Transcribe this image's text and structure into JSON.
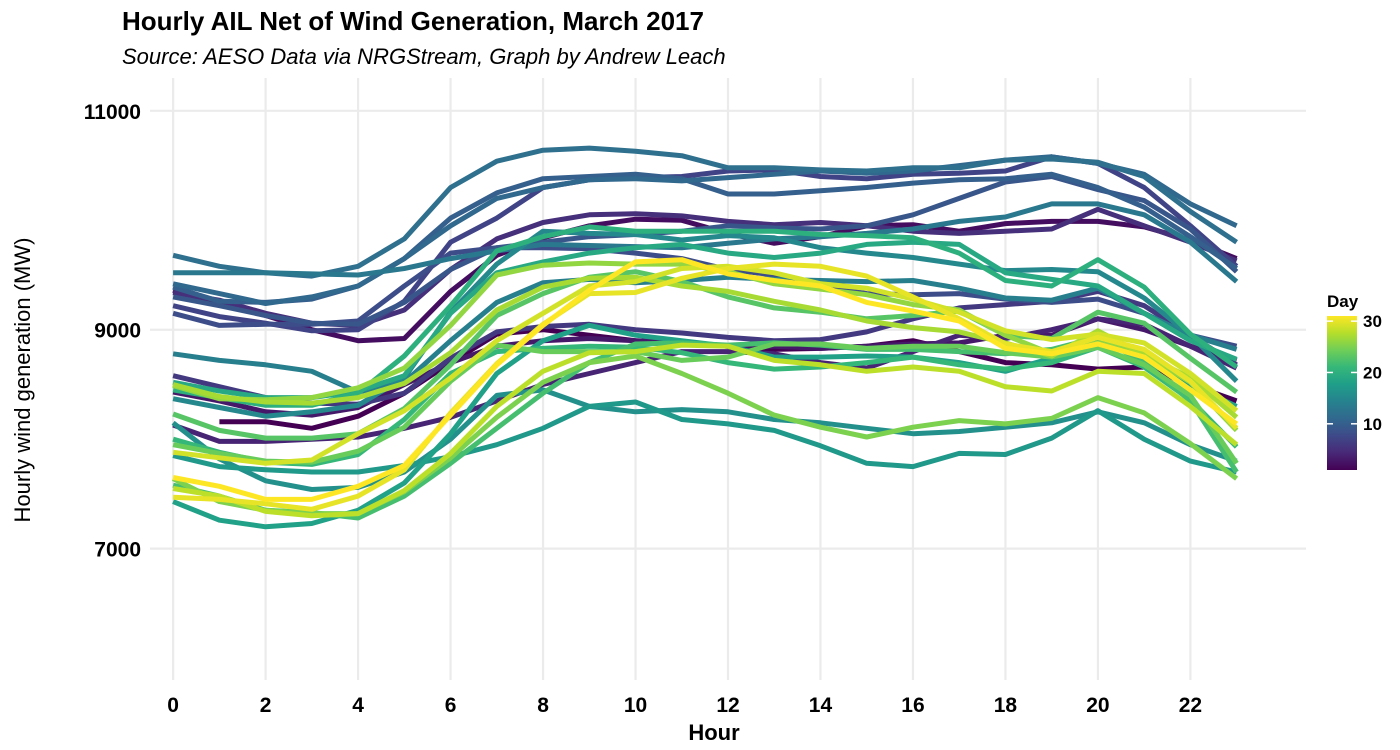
{
  "chart_data": {
    "type": "line",
    "title": "Hourly AIL Net of Wind Generation, March 2017",
    "subtitle": "Source: AESO Data via NRGStream, Graph by Andrew Leach",
    "xlabel": "Hour",
    "ylabel": "Hourly wind generation (MW)",
    "x": [
      0,
      1,
      2,
      3,
      4,
      5,
      6,
      7,
      8,
      9,
      10,
      11,
      12,
      13,
      14,
      15,
      16,
      17,
      18,
      19,
      20,
      21,
      22,
      23
    ],
    "xticks": [
      0,
      2,
      4,
      6,
      8,
      10,
      12,
      14,
      16,
      18,
      20,
      22
    ],
    "yticks": [
      7000,
      9000,
      11000
    ],
    "xlim": [
      -0.5,
      24.5
    ],
    "ylim": [
      5800,
      11300
    ],
    "grid": true,
    "legend": {
      "title": "Day",
      "position": "right",
      "ticks": [
        10,
        20,
        30
      ],
      "range": [
        1,
        31
      ],
      "colormap": "viridis",
      "colors": [
        "#440154",
        "#482878",
        "#3e4a89",
        "#31688e",
        "#26828e",
        "#1f9e89",
        "#35b779",
        "#6ece58",
        "#b5de2b",
        "#fde725"
      ]
    },
    "series": [
      {
        "day": 1,
        "values": [
          null,
          8160,
          8160,
          8100,
          8210,
          8420,
          8700,
          8960,
          9000,
          8950,
          8900,
          8880,
          8850,
          8820,
          8830,
          8850,
          8900,
          8800,
          8700,
          8680,
          8640,
          8660,
          8500,
          8350
        ]
      },
      {
        "day": 2,
        "values": [
          9360,
          9240,
          9130,
          9000,
          8900,
          8920,
          9350,
          9680,
          9840,
          9950,
          10010,
          10000,
          9880,
          9790,
          9850,
          9950,
          9960,
          9900,
          9970,
          9990,
          9990,
          9940,
          9820,
          9650
        ]
      },
      {
        "day": 3,
        "values": [
          8430,
          8350,
          8250,
          8220,
          8290,
          8500,
          8700,
          8850,
          8900,
          8920,
          8900,
          8880,
          8850,
          8850,
          8830,
          8850,
          8870,
          8880,
          8950,
          8950,
          9100,
          9000,
          8850,
          8720
        ]
      },
      {
        "day": 4,
        "values": [
          8130,
          7980,
          7980,
          8000,
          8020,
          8100,
          8200,
          8350,
          8500,
          8600,
          8700,
          8800,
          8800,
          8780,
          8700,
          8650,
          8800,
          8950,
          8920,
          9000,
          9100,
          9050,
          8850,
          8650
        ]
      },
      {
        "day": 5,
        "values": [
          9340,
          9270,
          9150,
          9060,
          9040,
          9180,
          9550,
          9830,
          9980,
          10050,
          10060,
          10040,
          9990,
          9960,
          9980,
          9950,
          9900,
          9880,
          9900,
          9920,
          10100,
          9950,
          9800,
          9630
        ]
      },
      {
        "day": 6,
        "values": [
          8580,
          8480,
          8380,
          8330,
          8320,
          8420,
          8740,
          8980,
          9030,
          9050,
          9000,
          8970,
          8930,
          8900,
          8910,
          8980,
          9100,
          9200,
          9230,
          9260,
          9350,
          9220,
          8950,
          8680
        ]
      },
      {
        "day": 7,
        "values": [
          9220,
          9120,
          9060,
          8990,
          9000,
          9260,
          9800,
          10020,
          10300,
          10370,
          10390,
          10400,
          10450,
          10460,
          10400,
          10380,
          10420,
          10430,
          10450,
          10580,
          10520,
          10300,
          9950,
          9580
        ]
      },
      {
        "day": 8,
        "values": [
          9150,
          9040,
          9050,
          9050,
          9080,
          9400,
          9700,
          9750,
          9750,
          9740,
          9700,
          9650,
          9550,
          9500,
          9400,
          9330,
          9320,
          9330,
          9280,
          9250,
          9280,
          9150,
          8950,
          8850
        ]
      },
      {
        "day": 9,
        "values": [
          9300,
          9220,
          9130,
          9060,
          9050,
          9250,
          9550,
          9750,
          9800,
          9850,
          9870,
          9900,
          9950,
          9930,
          9920,
          9950,
          10050,
          10200,
          10350,
          10400,
          10280,
          10180,
          9920,
          9530
        ]
      },
      {
        "day": 10,
        "values": [
          9390,
          9260,
          9250,
          9280,
          9400,
          9650,
          10020,
          10250,
          10380,
          10400,
          10420,
          10380,
          10240,
          10240,
          10270,
          10300,
          10340,
          10370,
          10380,
          10420,
          10300,
          10120,
          9850,
          9560
        ]
      },
      {
        "day": 11,
        "values": [
          9420,
          9330,
          9240,
          9300,
          9400,
          9650,
          9950,
          10200,
          10300,
          10370,
          10380,
          10360,
          10390,
          10420,
          10450,
          10430,
          10450,
          10500,
          10550,
          10580,
          10520,
          10420,
          10150,
          9950
        ]
      },
      {
        "day": 12,
        "values": [
          9680,
          9580,
          9520,
          9490,
          9580,
          9830,
          10300,
          10540,
          10640,
          10660,
          10630,
          10590,
          10480,
          10480,
          10460,
          10450,
          10480,
          10480,
          10550,
          10560,
          10530,
          10400,
          10080,
          9800
        ]
      },
      {
        "day": 13,
        "values": [
          9520,
          9520,
          9520,
          9510,
          9500,
          9560,
          9650,
          9720,
          9780,
          9770,
          9760,
          9750,
          9790,
          9830,
          9850,
          9880,
          9920,
          9990,
          10030,
          10150,
          10150,
          10050,
          9800,
          9440
        ]
      },
      {
        "day": 14,
        "values": [
          8780,
          8720,
          8680,
          8620,
          8430,
          8520,
          8900,
          9250,
          9430,
          9460,
          9430,
          9450,
          9480,
          9460,
          9450,
          9440,
          9450,
          9380,
          9290,
          9270,
          9380,
          9150,
          8950,
          8820
        ]
      },
      {
        "day": 15,
        "values": [
          8370,
          8290,
          8210,
          8250,
          8310,
          8560,
          9160,
          9600,
          9900,
          9880,
          9870,
          9820,
          9860,
          9840,
          9750,
          9700,
          9660,
          9600,
          9540,
          9550,
          9530,
          9290,
          8950,
          8530
        ]
      },
      {
        "day": 16,
        "values": [
          8150,
          7820,
          7620,
          7540,
          7560,
          7700,
          8000,
          8400,
          8450,
          8300,
          8250,
          8270,
          8250,
          8180,
          8150,
          8100,
          8050,
          8070,
          8110,
          8150,
          8250,
          8150,
          7950,
          7800
        ]
      },
      {
        "day": 17,
        "values": [
          7850,
          7750,
          7720,
          7700,
          7700,
          7760,
          7840,
          7950,
          8100,
          8300,
          8340,
          8180,
          8140,
          8080,
          7940,
          7780,
          7750,
          7870,
          7860,
          8010,
          8260,
          8000,
          7800,
          7700
        ]
      },
      {
        "day": 18,
        "values": [
          7430,
          7260,
          7200,
          7230,
          7350,
          7600,
          8050,
          8600,
          8900,
          9040,
          8950,
          8900,
          8850,
          8750,
          8750,
          8760,
          8750,
          8700,
          8620,
          8740,
          8920,
          8720,
          8500,
          8300
        ]
      },
      {
        "day": 19,
        "values": [
          8520,
          8440,
          8380,
          8380,
          8440,
          8580,
          9150,
          9520,
          9620,
          9700,
          9750,
          9780,
          9700,
          9660,
          9700,
          9780,
          9800,
          9780,
          9520,
          9460,
          9400,
          9150,
          8900,
          8730
        ]
      },
      {
        "day": 20,
        "values": [
          8450,
          8380,
          8310,
          8310,
          8420,
          8760,
          9220,
          9720,
          9850,
          9940,
          9900,
          9900,
          9900,
          9900,
          9870,
          9860,
          9840,
          9700,
          9450,
          9400,
          9640,
          9390,
          8960,
          8660
        ]
      },
      {
        "day": 21,
        "values": [
          8000,
          7880,
          7790,
          7770,
          7860,
          8180,
          8600,
          8800,
          8830,
          8850,
          8840,
          8790,
          8700,
          8640,
          8660,
          8700,
          8750,
          8680,
          8640,
          8700,
          8840,
          8660,
          8360,
          7930
        ]
      },
      {
        "day": 22,
        "values": [
          7580,
          7480,
          7350,
          7330,
          7280,
          7480,
          7780,
          8100,
          8420,
          8700,
          8870,
          8880,
          8860,
          8880,
          8860,
          8820,
          8820,
          8800,
          8780,
          8820,
          8930,
          8700,
          8350,
          7700
        ]
      },
      {
        "day": 23,
        "values": [
          8230,
          8080,
          8010,
          8010,
          8050,
          8280,
          8680,
          9130,
          9330,
          9480,
          9530,
          9440,
          9300,
          9200,
          9160,
          9100,
          9130,
          9170,
          8950,
          8920,
          9160,
          9060,
          8740,
          8430
        ]
      },
      {
        "day": 24,
        "values": [
          7950,
          7870,
          7800,
          7790,
          7890,
          8110,
          8530,
          8860,
          8800,
          8800,
          8800,
          8720,
          8750,
          8870,
          8870,
          8830,
          8850,
          8850,
          8790,
          8750,
          8840,
          8680,
          8400,
          7780
        ]
      },
      {
        "day": 25,
        "values": [
          7640,
          7430,
          7350,
          7320,
          7320,
          7520,
          7830,
          8200,
          8520,
          8700,
          8760,
          8600,
          8420,
          8220,
          8110,
          8020,
          8110,
          8170,
          8140,
          8190,
          8380,
          8240,
          7960,
          7640
        ]
      },
      {
        "day": 26,
        "values": [
          8490,
          8370,
          8360,
          8380,
          8470,
          8650,
          9040,
          9500,
          9590,
          9610,
          9600,
          9600,
          9530,
          9420,
          9370,
          9320,
          9230,
          9180,
          8950,
          8780,
          8880,
          8780,
          8520,
          8080
        ]
      },
      {
        "day": 27,
        "values": [
          8500,
          8390,
          8340,
          8330,
          8380,
          8510,
          8790,
          9180,
          9390,
          9470,
          9480,
          9400,
          9350,
          9260,
          9180,
          9080,
          9020,
          8980,
          8880,
          8760,
          8990,
          8770,
          8560,
          8200
        ]
      },
      {
        "day": 28,
        "values": [
          7550,
          7480,
          7340,
          7300,
          7320,
          7530,
          7870,
          8300,
          8620,
          8790,
          8800,
          8860,
          8850,
          8720,
          8680,
          8620,
          8660,
          8620,
          8480,
          8440,
          8620,
          8600,
          8300,
          7950
        ]
      },
      {
        "day": 29,
        "values": [
          7880,
          7830,
          7780,
          7810,
          8050,
          8260,
          8560,
          8900,
          9150,
          9400,
          9440,
          9560,
          9580,
          9520,
          9420,
          9380,
          9280,
          9160,
          8990,
          8910,
          8960,
          8880,
          8600,
          8260
        ]
      },
      {
        "day": 30,
        "values": [
          7470,
          7450,
          7410,
          7360,
          7480,
          7720,
          8240,
          8690,
          9050,
          9330,
          9340,
          9470,
          9560,
          9600,
          9580,
          9490,
          9300,
          9100,
          8870,
          8800,
          8930,
          8820,
          8530,
          8100
        ]
      },
      {
        "day": 31,
        "values": [
          7650,
          7570,
          7450,
          7450,
          7570,
          7760,
          8220,
          8680,
          9040,
          9360,
          9620,
          9640,
          9510,
          9450,
          9400,
          9250,
          9170,
          9080,
          8830,
          8780,
          8870,
          8750,
          8450,
          8140
        ]
      }
    ]
  }
}
